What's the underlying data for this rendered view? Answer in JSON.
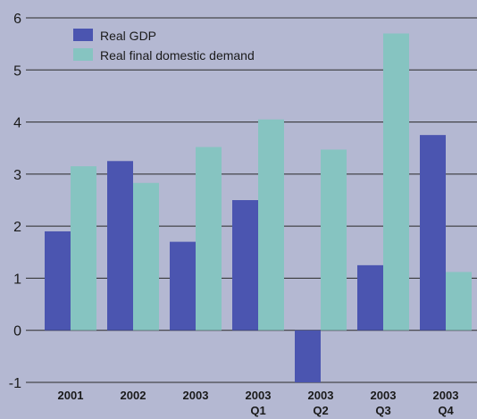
{
  "chart_data": {
    "type": "bar",
    "categories": [
      [
        "2001"
      ],
      [
        "2002"
      ],
      [
        "2003"
      ],
      [
        "2003",
        "Q1"
      ],
      [
        "2003",
        "Q2"
      ],
      [
        "2003",
        "Q3"
      ],
      [
        "2003",
        "Q4"
      ]
    ],
    "series": [
      {
        "name": "Real GDP",
        "color": "#4b55b0",
        "values": [
          1.9,
          3.25,
          1.7,
          2.5,
          -1.0,
          1.25,
          3.75
        ]
      },
      {
        "name": "Real final domestic demand",
        "color": "#86c4c1",
        "values": [
          3.15,
          2.83,
          3.52,
          4.05,
          3.47,
          5.7,
          1.12
        ]
      }
    ],
    "ylim": [
      -1,
      6
    ],
    "yticks": [
      -1,
      0,
      1,
      2,
      3,
      4,
      5,
      6
    ],
    "title": "",
    "xlabel": "",
    "ylabel": "",
    "grid": true,
    "legend_position": "top-left",
    "colors": {
      "background": "#b4b8d2",
      "gridline": "#2a2a2a",
      "axis": "#1a1a1a"
    }
  }
}
